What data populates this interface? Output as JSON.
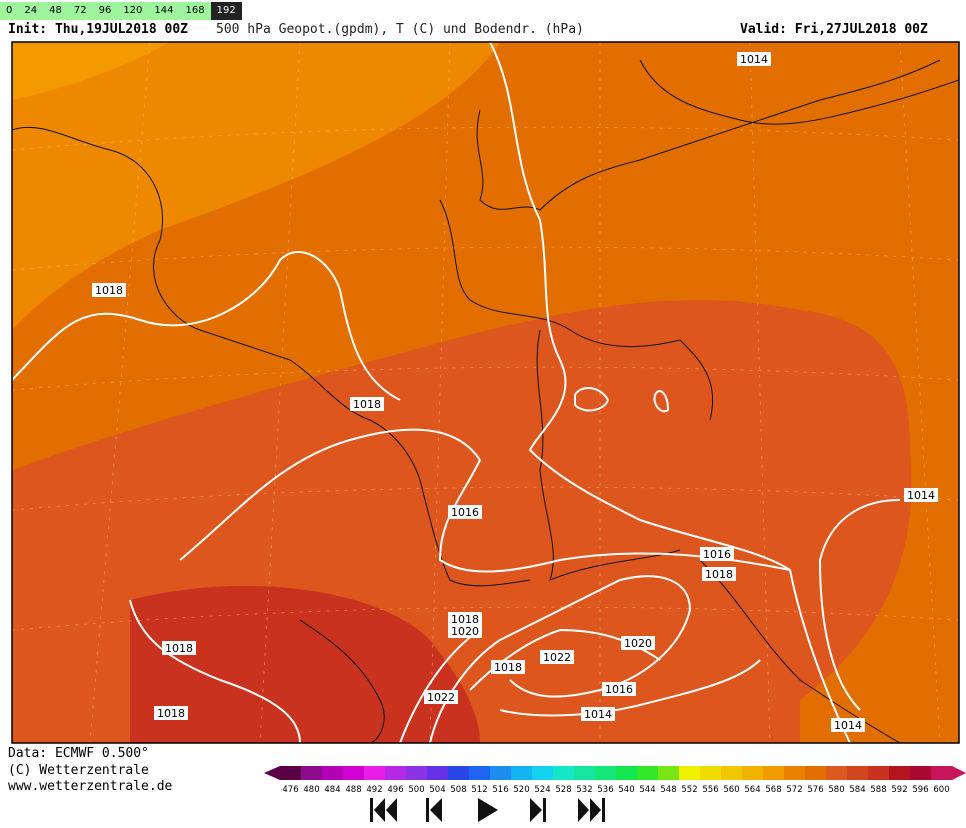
{
  "timesteps": [
    0,
    24,
    48,
    72,
    96,
    120,
    144,
    168,
    192
  ],
  "selected_timestep": 192,
  "header": {
    "init": "Init: Thu,19JUL2018 00Z",
    "title": "500 hPa Geopot.(gpdm), T (C) und Bodendr. (hPa)",
    "valid": "Valid: Fri,27JUL2018 00Z"
  },
  "isobar_labels": [
    1014,
    1018,
    1018,
    1016,
    1016,
    1018,
    1014,
    1018,
    1020,
    1022,
    1020,
    1018,
    1016,
    1014,
    1022,
    1018,
    1018,
    1014
  ],
  "footer": {
    "data": "Data: ECMWF   0.500°",
    "copyright": "(C) Wetterzentrale",
    "url": "www.wetterzentrale.de"
  },
  "scale": {
    "levels": [
      476,
      480,
      484,
      488,
      492,
      496,
      500,
      504,
      508,
      512,
      516,
      520,
      524,
      528,
      532,
      536,
      540,
      544,
      548,
      552,
      556,
      560,
      564,
      568,
      572,
      576,
      580,
      584,
      588,
      592,
      596,
      600
    ],
    "colors": [
      "#5a0046",
      "#8c0a8c",
      "#b400b4",
      "#d200d2",
      "#e61ee6",
      "#b428e6",
      "#8c32e6",
      "#6432e6",
      "#2846e6",
      "#1e64f0",
      "#1e8cf0",
      "#14b4f0",
      "#14d2f0",
      "#14e6c8",
      "#14e6a0",
      "#14e678",
      "#14e650",
      "#32e628",
      "#78e614",
      "#f0f000",
      "#f0dc00",
      "#f0c800",
      "#f0b400",
      "#f09c00",
      "#e88200",
      "#e06e00",
      "#dc5a1e",
      "#d2461e",
      "#c8321e",
      "#b4141e",
      "#aa0a32",
      "#c8145a"
    ]
  }
}
